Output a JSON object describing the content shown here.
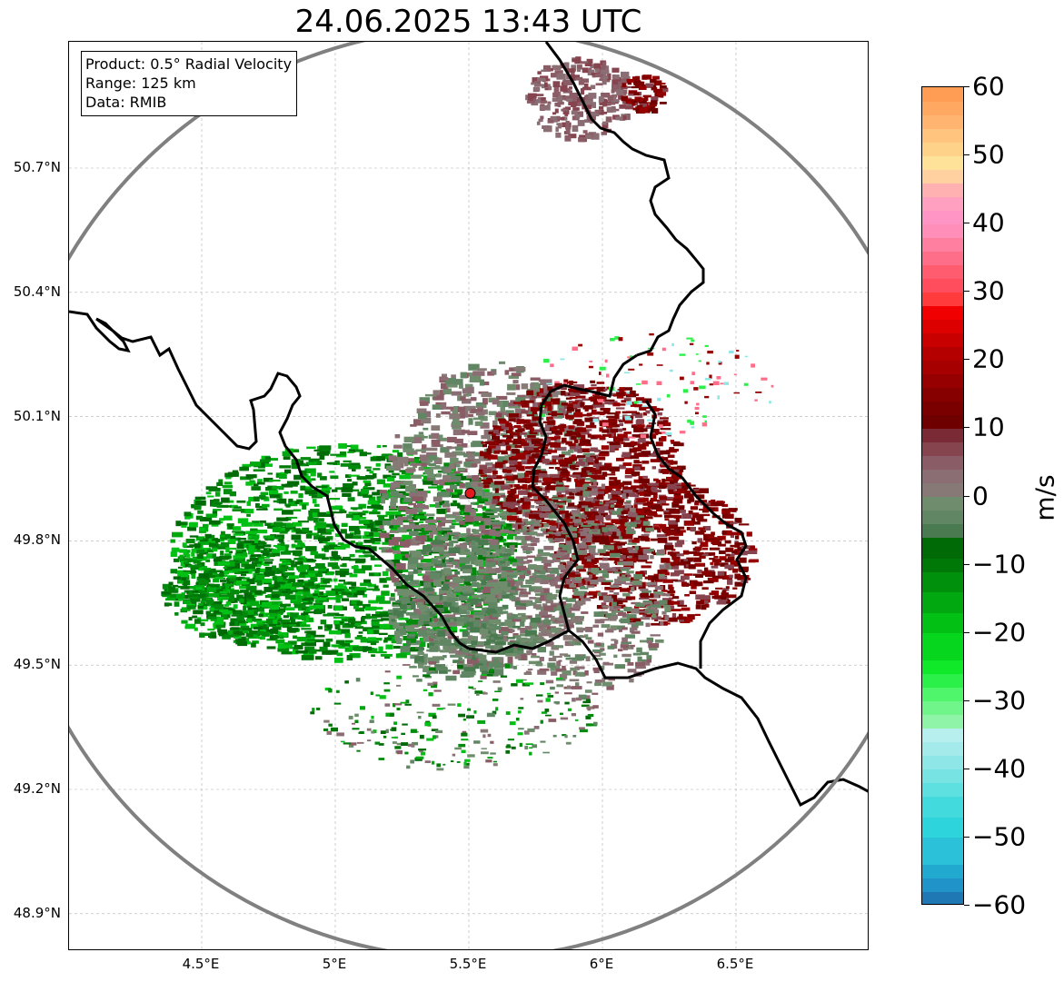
{
  "title": "24.06.2025 13:43 UTC",
  "info": {
    "product": "Product: 0.5° Radial Velocity",
    "range": "Range: 125 km",
    "source": "Data: RMIB"
  },
  "axes": {
    "x_ticks": [
      {
        "value": 4.5,
        "label": "4.5°E"
      },
      {
        "value": 5.0,
        "label": "5°E"
      },
      {
        "value": 5.5,
        "label": "5.5°E"
      },
      {
        "value": 6.0,
        "label": "6°E"
      },
      {
        "value": 6.5,
        "label": "6.5°E"
      }
    ],
    "y_ticks": [
      {
        "value": 50.7,
        "label": "50.7°N"
      },
      {
        "value": 50.4,
        "label": "50.4°N"
      },
      {
        "value": 50.1,
        "label": "50.1°N"
      },
      {
        "value": 49.8,
        "label": "49.8°N"
      },
      {
        "value": 49.5,
        "label": "49.5°N"
      },
      {
        "value": 49.2,
        "label": "49.2°N"
      },
      {
        "value": 48.9,
        "label": "48.9°N"
      }
    ],
    "lon_range": [
      4.0,
      7.0
    ],
    "lat_range": [
      48.8,
      51.0
    ],
    "grid": true
  },
  "radar": {
    "lon": 5.505,
    "lat": 49.915,
    "site_color": "#e31a1c"
  },
  "colorbar": {
    "unit": "m/s",
    "min": -60,
    "max": 60,
    "tick_labels": [
      "60",
      "50",
      "40",
      "30",
      "20",
      "10",
      "0",
      "−10",
      "−20",
      "−30",
      "−40",
      "−50",
      "−60"
    ],
    "tick_values": [
      60,
      50,
      40,
      30,
      20,
      10,
      0,
      -10,
      -20,
      -30,
      -40,
      -50,
      -60
    ],
    "stops": [
      {
        "from": -60,
        "to": -58,
        "color": "#1f77b4"
      },
      {
        "from": -58,
        "to": -56,
        "color": "#2093c8"
      },
      {
        "from": -56,
        "to": -54,
        "color": "#22a9d0"
      },
      {
        "from": -54,
        "to": -50,
        "color": "#2bc1d8"
      },
      {
        "from": -50,
        "to": -47,
        "color": "#2ed4dc"
      },
      {
        "from": -47,
        "to": -44,
        "color": "#43dade"
      },
      {
        "from": -44,
        "to": -42,
        "color": "#5ee0e0"
      },
      {
        "from": -42,
        "to": -40,
        "color": "#77e3e3"
      },
      {
        "from": -40,
        "to": -38,
        "color": "#8fe6e6"
      },
      {
        "from": -38,
        "to": -36,
        "color": "#a4eaea"
      },
      {
        "from": -36,
        "to": -34,
        "color": "#b7eeee"
      },
      {
        "from": -34,
        "to": -32,
        "color": "#8ff3a8"
      },
      {
        "from": -32,
        "to": -30,
        "color": "#6ff58a"
      },
      {
        "from": -30,
        "to": -28,
        "color": "#4ff56b"
      },
      {
        "from": -28,
        "to": -26,
        "color": "#2bf04a"
      },
      {
        "from": -26,
        "to": -24,
        "color": "#10e82a"
      },
      {
        "from": -24,
        "to": -20,
        "color": "#06d61d"
      },
      {
        "from": -20,
        "to": -17,
        "color": "#03c015"
      },
      {
        "from": -17,
        "to": -14,
        "color": "#02a810"
      },
      {
        "from": -14,
        "to": -11,
        "color": "#01900c"
      },
      {
        "from": -11,
        "to": -9,
        "color": "#007808"
      },
      {
        "from": -9,
        "to": -6,
        "color": "#006a06"
      },
      {
        "from": -6,
        "to": -4,
        "color": "#4a7a4f"
      },
      {
        "from": -4,
        "to": -2,
        "color": "#618664"
      },
      {
        "from": -2,
        "to": 0,
        "color": "#6f8c6d"
      },
      {
        "from": 0,
        "to": 2,
        "color": "#877a76"
      },
      {
        "from": 2,
        "to": 4,
        "color": "#8a6e74"
      },
      {
        "from": 4,
        "to": 6,
        "color": "#8a5d66"
      },
      {
        "from": 6,
        "to": 8,
        "color": "#86444f"
      },
      {
        "from": 8,
        "to": 10,
        "color": "#7a2a34"
      },
      {
        "from": 10,
        "to": 12,
        "color": "#6e0000"
      },
      {
        "from": 12,
        "to": 14,
        "color": "#7a0000"
      },
      {
        "from": 14,
        "to": 16,
        "color": "#870000"
      },
      {
        "from": 16,
        "to": 18,
        "color": "#960000"
      },
      {
        "from": 18,
        "to": 20,
        "color": "#a60000"
      },
      {
        "from": 20,
        "to": 22,
        "color": "#b50000"
      },
      {
        "from": 22,
        "to": 24,
        "color": "#c80000"
      },
      {
        "from": 24,
        "to": 26,
        "color": "#dc0000"
      },
      {
        "from": 26,
        "to": 28,
        "color": "#f00000"
      },
      {
        "from": 28,
        "to": 30,
        "color": "#ff3b3b"
      },
      {
        "from": 30,
        "to": 32,
        "color": "#ff4d5e"
      },
      {
        "from": 32,
        "to": 34,
        "color": "#ff5c70"
      },
      {
        "from": 34,
        "to": 36,
        "color": "#ff6e88"
      },
      {
        "from": 36,
        "to": 38,
        "color": "#ff7fa0"
      },
      {
        "from": 38,
        "to": 40,
        "color": "#ff8fb8"
      },
      {
        "from": 40,
        "to": 42,
        "color": "#ff95c5"
      },
      {
        "from": 42,
        "to": 44,
        "color": "#ffa0c0"
      },
      {
        "from": 44,
        "to": 46,
        "color": "#ffb0b0"
      },
      {
        "from": 46,
        "to": 48,
        "color": "#ffd0a0"
      },
      {
        "from": 48,
        "to": 50,
        "color": "#ffe29a"
      },
      {
        "from": 50,
        "to": 52,
        "color": "#ffd28a"
      },
      {
        "from": 52,
        "to": 54,
        "color": "#ffc47e"
      },
      {
        "from": 54,
        "to": 56,
        "color": "#ffb570"
      },
      {
        "from": 56,
        "to": 58,
        "color": "#ffa862"
      },
      {
        "from": 58,
        "to": 60,
        "color": "#ff9d55"
      }
    ]
  },
  "colors": {
    "range_ring": "#808080",
    "border": "#000000",
    "grid": "#b0b0b0",
    "inbound_dark": "#006a06",
    "inbound_bright": "#03c015",
    "near_zero_green": "#6f8c6d",
    "near_zero_mauve": "#8a6e74",
    "outbound_dark": "#7a0000"
  }
}
